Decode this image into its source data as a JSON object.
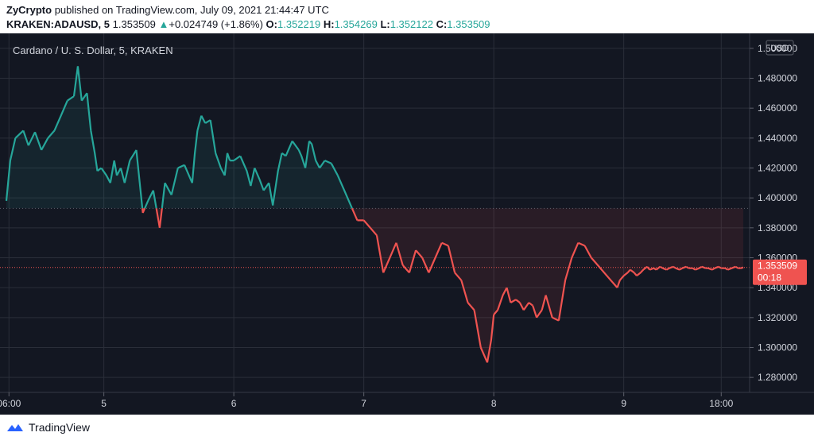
{
  "header": {
    "publisher": "ZyCrypto",
    "published_text": "published on TradingView.com, July 09, 2021 21:44:47 UTC",
    "symbol": "KRAKEN:ADAUSD, 5",
    "last": "1.353509",
    "arrow": "▲",
    "change": "+0.024749 (+1.86%)",
    "o_label": "O:",
    "o_value": "1.352219",
    "h_label": "H:",
    "h_value": "1.354269",
    "l_label": "L:",
    "l_value": "1.352122",
    "c_label": "C:",
    "c_value": "1.353509"
  },
  "footer": {
    "brand": "TradingView",
    "logo_icon": "tradingview-logo-icon"
  },
  "colors": {
    "background": "#131722",
    "up": "#26a69a",
    "down": "#ef5350",
    "grid": "#2a2e39",
    "axis_text": "#d1d4dc"
  },
  "chart_data": {
    "type": "line",
    "title": "Cardano / U. S. Dollar, 5, KRAKEN",
    "currency": "USD",
    "ylim": [
      1.27,
      1.51
    ],
    "baseline": 1.393,
    "y_ticks": [
      "1.500000",
      "1.480000",
      "1.460000",
      "1.440000",
      "1.420000",
      "1.400000",
      "1.380000",
      "1.360000",
      "1.340000",
      "1.320000",
      "1.300000",
      "1.280000"
    ],
    "x_range": [
      5.25,
      10.95
    ],
    "x_ticks": [
      {
        "label": "06:00",
        "x": 5.27
      },
      {
        "label": "5",
        "x": 6.0
      },
      {
        "label": "6",
        "x": 7.0
      },
      {
        "label": "7",
        "x": 8.0
      },
      {
        "label": "8",
        "x": 9.0
      },
      {
        "label": "9",
        "x": 10.0
      },
      {
        "label": "18:00",
        "x": 10.75
      }
    ],
    "last_value": "1.353509",
    "countdown": "00:18",
    "series": [
      {
        "x": [
          5.25,
          5.28,
          5.32,
          5.38,
          5.42,
          5.47,
          5.52,
          5.57,
          5.62,
          5.67,
          5.72,
          5.77,
          5.8,
          5.83,
          5.87,
          5.9,
          5.93,
          5.95,
          5.98,
          6.02,
          6.05,
          6.08,
          6.1,
          6.13,
          6.16,
          6.2,
          6.25,
          6.3,
          6.34,
          6.38,
          6.43,
          6.47,
          6.52,
          6.57,
          6.62,
          6.68,
          6.7,
          6.72,
          6.75,
          6.78,
          6.82,
          6.86,
          6.9,
          6.93,
          6.95,
          6.97,
          7.0,
          7.05,
          7.1,
          7.13,
          7.16,
          7.2,
          7.23,
          7.27,
          7.3,
          7.34,
          7.37,
          7.4,
          7.45,
          7.5,
          7.52,
          7.55,
          7.58,
          7.6,
          7.63,
          7.66,
          7.7,
          7.75,
          7.8,
          7.85,
          7.9,
          7.95,
          8.0,
          8.05,
          8.1,
          8.15,
          8.2,
          8.25,
          8.3,
          8.35,
          8.4,
          8.45,
          8.5,
          8.55,
          8.6,
          8.65,
          8.7,
          8.75,
          8.8,
          8.85,
          8.9,
          8.95,
          8.98,
          9.0,
          9.03,
          9.07,
          9.1,
          9.13,
          9.17,
          9.2,
          9.23,
          9.27,
          9.3,
          9.33,
          9.37,
          9.4,
          9.45,
          9.5,
          9.55,
          9.6,
          9.65,
          9.7,
          9.75,
          9.8,
          9.85,
          9.9,
          9.93,
          9.95,
          9.97,
          10.0,
          10.03,
          10.05,
          10.08,
          10.1,
          10.13,
          10.15,
          10.18,
          10.2,
          10.23,
          10.25,
          10.28,
          10.3,
          10.33,
          10.35,
          10.38,
          10.4,
          10.43,
          10.45,
          10.48,
          10.5,
          10.53,
          10.55,
          10.58,
          10.6,
          10.63,
          10.65,
          10.68,
          10.7,
          10.73,
          10.75,
          10.78,
          10.8,
          10.83,
          10.86,
          10.88,
          10.9,
          10.92
        ],
        "y": [
          1.398,
          1.425,
          1.44,
          1.445,
          1.435,
          1.444,
          1.432,
          1.44,
          1.445,
          1.455,
          1.465,
          1.468,
          1.488,
          1.465,
          1.47,
          1.445,
          1.43,
          1.418,
          1.42,
          1.415,
          1.41,
          1.425,
          1.415,
          1.42,
          1.41,
          1.425,
          1.432,
          1.39,
          1.398,
          1.405,
          1.38,
          1.41,
          1.402,
          1.42,
          1.422,
          1.41,
          1.43,
          1.445,
          1.455,
          1.45,
          1.452,
          1.43,
          1.42,
          1.415,
          1.43,
          1.425,
          1.425,
          1.428,
          1.418,
          1.408,
          1.42,
          1.412,
          1.405,
          1.41,
          1.395,
          1.418,
          1.43,
          1.428,
          1.438,
          1.432,
          1.428,
          1.42,
          1.438,
          1.436,
          1.425,
          1.42,
          1.425,
          1.423,
          1.415,
          1.405,
          1.395,
          1.385,
          1.385,
          1.38,
          1.375,
          1.35,
          1.36,
          1.37,
          1.355,
          1.35,
          1.365,
          1.36,
          1.35,
          1.36,
          1.37,
          1.368,
          1.35,
          1.345,
          1.33,
          1.325,
          1.3,
          1.29,
          1.305,
          1.322,
          1.325,
          1.335,
          1.34,
          1.33,
          1.332,
          1.33,
          1.325,
          1.33,
          1.328,
          1.32,
          1.325,
          1.335,
          1.32,
          1.318,
          1.345,
          1.36,
          1.37,
          1.368,
          1.36,
          1.355,
          1.35,
          1.345,
          1.342,
          1.34,
          1.345,
          1.348,
          1.35,
          1.352,
          1.35,
          1.348,
          1.35,
          1.352,
          1.354,
          1.352,
          1.353,
          1.352,
          1.354,
          1.353,
          1.352,
          1.353,
          1.354,
          1.353,
          1.352,
          1.353,
          1.354,
          1.353,
          1.353,
          1.352,
          1.353,
          1.354,
          1.353,
          1.353,
          1.352,
          1.353,
          1.354,
          1.353,
          1.353,
          1.352,
          1.353,
          1.354,
          1.353,
          1.353,
          1.3535
        ]
      }
    ]
  }
}
